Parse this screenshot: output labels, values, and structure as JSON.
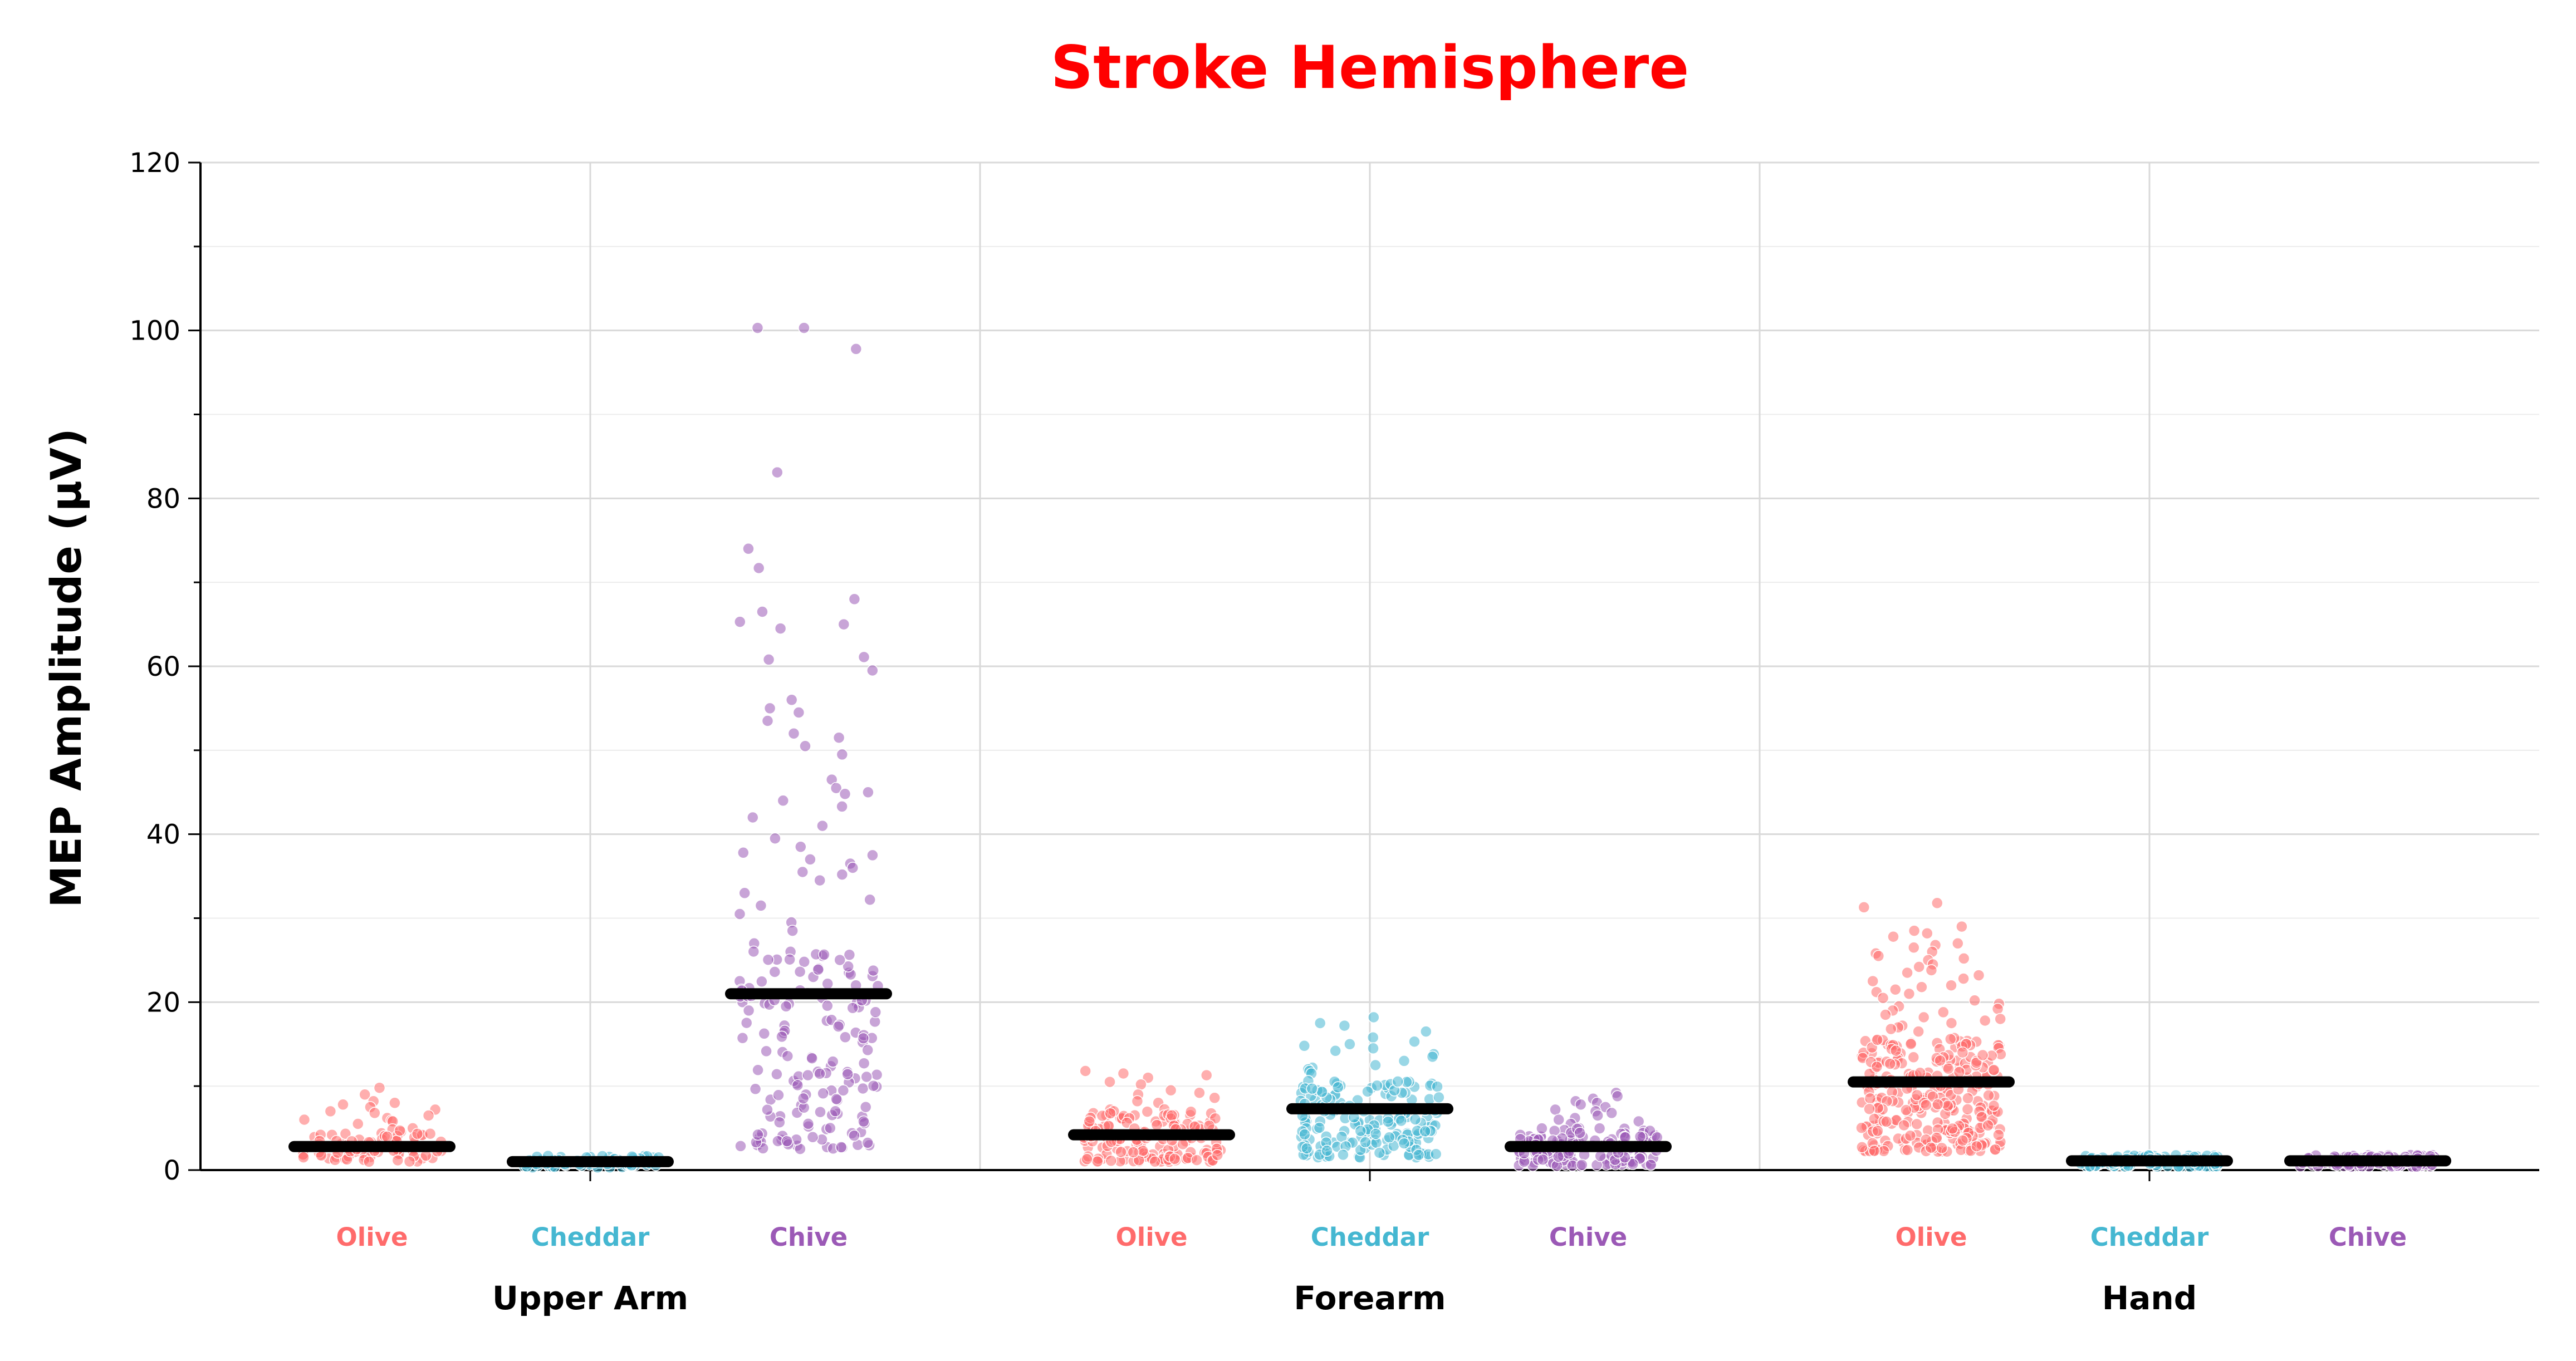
{
  "chart_data": {
    "type": "scatter",
    "subtype": "strip-plot-with-mean-bars",
    "title": "Stroke Hemisphere",
    "title_color": "#ff0000",
    "ylabel": "MEP Amplitude (µV)",
    "xlabel": "",
    "ylim": [
      0,
      120
    ],
    "yticks": [
      "0",
      "20",
      "40",
      "60",
      "80",
      "100",
      "120"
    ],
    "grid": true,
    "legend": "none",
    "colors": {
      "Olive": "#ff6b6b",
      "Cheddar": "#45b7d1",
      "Chive": "#9b59b6",
      "mean_bar": "#000000"
    },
    "groups": [
      {
        "name": "Upper Arm",
        "series": [
          {
            "name": "Olive",
            "mean": 2.8,
            "n": 90,
            "min": 1.0,
            "max": 9.8,
            "typical_high": 5,
            "outliers": [
              9.8,
              9.0,
              8.2,
              8.0,
              7.8,
              7.5,
              7.2,
              7.0,
              6.8,
              6.5,
              6.2,
              6.0,
              5.9,
              5.8,
              5.5
            ]
          },
          {
            "name": "Cheddar",
            "mean": 1.0,
            "n": 70,
            "min": 0.3,
            "max": 1.8,
            "typical_high": 1.7,
            "outliers": []
          },
          {
            "name": "Chive",
            "mean": 21.0,
            "n": 200,
            "min": 2.5,
            "max": 100.3,
            "typical_high": 18,
            "outliers": [
              100.3,
              100.3,
              97.8,
              83.1,
              74.0,
              71.7,
              68.0,
              66.5,
              65.3,
              65.0,
              64.5,
              61.1,
              60.8,
              59.5,
              56.0,
              55.0,
              54.5,
              53.5,
              52.0,
              51.5,
              50.5,
              49.5,
              46.5,
              45.5,
              45.0,
              44.8,
              44.0,
              43.3,
              42.0,
              41.0,
              39.5,
              38.5,
              37.8,
              37.5,
              37.0,
              36.5,
              36.0,
              35.5,
              35.2,
              34.5,
              33.0,
              32.2,
              31.5,
              30.5,
              29.5,
              28.5,
              27.0,
              26.0,
              24.8,
              24.0,
              23.5,
              23.0,
              22.5,
              22.0,
              21.5,
              20.5,
              20.0,
              19.8,
              19.5,
              19.0
            ]
          }
        ]
      },
      {
        "name": "Forearm",
        "series": [
          {
            "name": "Olive",
            "mean": 4.2,
            "n": 170,
            "min": 1.0,
            "max": 11.8,
            "typical_high": 7.5,
            "outliers": [
              11.8,
              11.5,
              11.3,
              11.0,
              10.5,
              10.2,
              9.5,
              9.2,
              9.0,
              8.6,
              8.2,
              8.0
            ]
          },
          {
            "name": "Cheddar",
            "mean": 7.3,
            "n": 180,
            "min": 1.5,
            "max": 18.2,
            "typical_high": 11,
            "outliers": [
              18.2,
              17.5,
              17.2,
              16.5,
              15.8,
              15.3,
              15.0,
              14.8,
              14.5,
              14.2,
              13.8,
              13.5,
              13.0,
              12.5,
              12.2,
              12.0,
              11.8,
              11.5
            ]
          },
          {
            "name": "Chive",
            "mean": 2.8,
            "n": 150,
            "min": 0.5,
            "max": 9.2,
            "typical_high": 5,
            "outliers": [
              9.2,
              8.8,
              8.5,
              8.2,
              8.0,
              7.8,
              7.5,
              7.2,
              7.0,
              6.8,
              6.5,
              6.2,
              6.0,
              5.8,
              5.5
            ]
          }
        ]
      },
      {
        "name": "Hand",
        "series": [
          {
            "name": "Olive",
            "mean": 10.5,
            "n": 320,
            "min": 2.2,
            "max": 31.8,
            "typical_high": 16,
            "outliers": [
              31.8,
              31.3,
              29.0,
              28.5,
              28.2,
              27.8,
              27.0,
              26.8,
              26.5,
              26.0,
              25.8,
              25.5,
              25.2,
              25.0,
              24.5,
              24.2,
              23.8,
              23.5,
              23.2,
              22.8,
              22.5,
              22.0,
              21.8,
              21.5,
              21.2,
              21.0,
              20.5,
              20.2,
              19.8,
              19.5,
              19.2,
              19.0,
              18.8,
              18.5,
              18.2,
              18.0,
              17.8,
              17.5,
              17.2,
              17.0,
              16.8,
              16.5
            ]
          },
          {
            "name": "Cheddar",
            "mean": 1.1,
            "n": 110,
            "min": 0.4,
            "max": 1.9,
            "typical_high": 1.8,
            "outliers": []
          },
          {
            "name": "Chive",
            "mean": 1.1,
            "n": 110,
            "min": 0.4,
            "max": 1.9,
            "typical_high": 1.8,
            "outliers": []
          }
        ]
      }
    ]
  }
}
